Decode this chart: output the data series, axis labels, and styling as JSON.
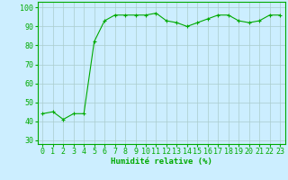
{
  "x": [
    0,
    1,
    2,
    3,
    4,
    5,
    6,
    7,
    8,
    9,
    10,
    11,
    12,
    13,
    14,
    15,
    16,
    17,
    18,
    19,
    20,
    21,
    22,
    23
  ],
  "y": [
    44,
    45,
    41,
    44,
    44,
    82,
    93,
    96,
    96,
    96,
    96,
    97,
    93,
    92,
    90,
    92,
    94,
    96,
    96,
    93,
    92,
    93,
    96,
    96
  ],
  "line_color": "#00aa00",
  "marker": "+",
  "bg_color": "#cceeff",
  "grid_color": "#aacccc",
  "xlabel": "Humidité relative (%)",
  "xlabel_color": "#00aa00",
  "ylim": [
    28,
    103
  ],
  "yticks": [
    30,
    40,
    50,
    60,
    70,
    80,
    90,
    100
  ],
  "xlim": [
    -0.5,
    23.5
  ],
  "label_fontsize": 6.5,
  "tick_fontsize": 6.0
}
